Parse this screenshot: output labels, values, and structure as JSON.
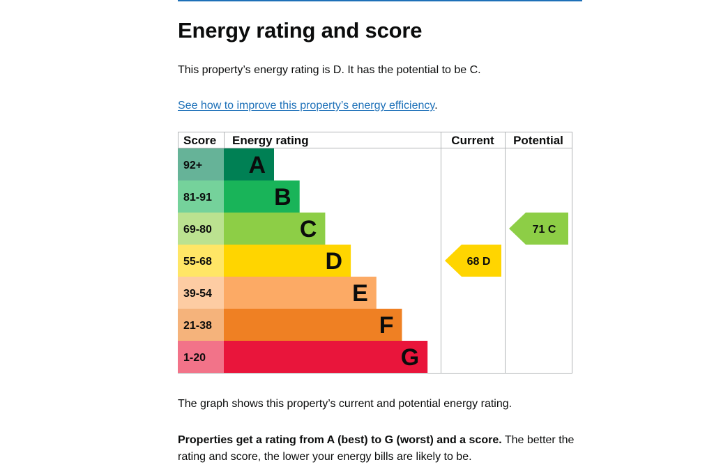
{
  "page": {
    "heading": "Energy rating and score",
    "rating_sentence": "This property’s energy rating is D. It has the potential to be C.",
    "improve_link": "See how to improve this property’s energy efficiency",
    "improve_link_suffix": ".",
    "graph_caption": "The graph shows this property’s current and potential energy rating.",
    "properties_bold": "Properties get a rating from A (best) to G (worst) and a score.",
    "properties_rest": " The better the rating and score, the lower your energy bills are likely to be."
  },
  "chart_data": {
    "type": "table",
    "headers": {
      "score": "Score",
      "rating": "Energy rating",
      "current": "Current",
      "potential": "Potential"
    },
    "bands": [
      {
        "letter": "A",
        "range": "92+",
        "color": "#008054",
        "score_bg": "#66b398"
      },
      {
        "letter": "B",
        "range": "81-91",
        "color": "#19b459",
        "score_bg": "#75d29b"
      },
      {
        "letter": "C",
        "range": "69-80",
        "color": "#8dce46",
        "score_bg": "#bbe290"
      },
      {
        "letter": "D",
        "range": "55-68",
        "color": "#ffd500",
        "score_bg": "#ffe666"
      },
      {
        "letter": "E",
        "range": "39-54",
        "color": "#fcaa65",
        "score_bg": "#fdcca3"
      },
      {
        "letter": "F",
        "range": "21-38",
        "color": "#ef8023",
        "score_bg": "#f5b37b"
      },
      {
        "letter": "G",
        "range": "1-20",
        "color": "#e9153b",
        "score_bg": "#f27389"
      }
    ],
    "current": {
      "score": 68,
      "letter": "D",
      "label": "68 D"
    },
    "potential": {
      "score": 71,
      "letter": "C",
      "label": "71 C"
    }
  }
}
